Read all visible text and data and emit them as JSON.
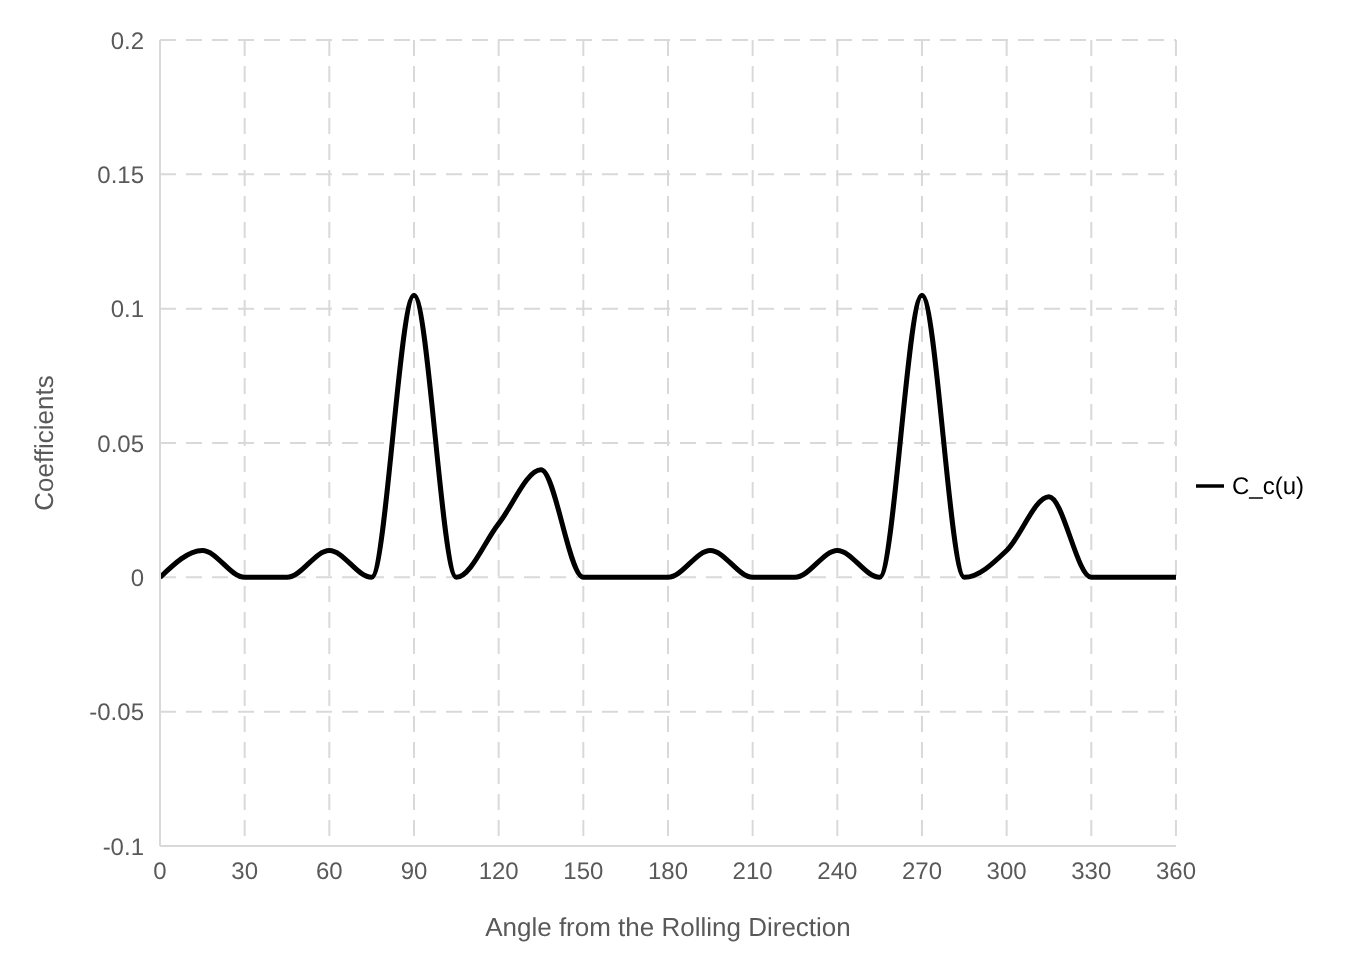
{
  "chart_data": {
    "type": "line",
    "xlabel": "Angle from the Rolling Direction",
    "ylabel": "Coefficients",
    "x": [
      0,
      15,
      30,
      45,
      60,
      75,
      90,
      105,
      120,
      135,
      150,
      165,
      180,
      195,
      210,
      225,
      240,
      255,
      270,
      285,
      300,
      315,
      330,
      345,
      360
    ],
    "series": [
      {
        "name": "C_c(u)",
        "color": "#000000",
        "values": [
          0,
          0.01,
          0,
          0,
          0.01,
          0,
          0.105,
          0,
          0.02,
          0.04,
          0,
          0,
          0,
          0.01,
          0,
          0,
          0.01,
          0,
          0.105,
          0,
          0.01,
          0.03,
          0,
          0,
          0
        ]
      }
    ],
    "xlim": [
      0,
      360
    ],
    "xticks": [
      0,
      30,
      60,
      90,
      120,
      150,
      180,
      210,
      240,
      270,
      300,
      330,
      360
    ],
    "ylim": [
      -0.1,
      0.2
    ],
    "yticks": [
      -0.1,
      -0.05,
      0,
      0.05,
      0.1,
      0.15,
      0.2
    ],
    "grid": true,
    "legend": "right",
    "marker": "none",
    "line_style": "solid"
  }
}
